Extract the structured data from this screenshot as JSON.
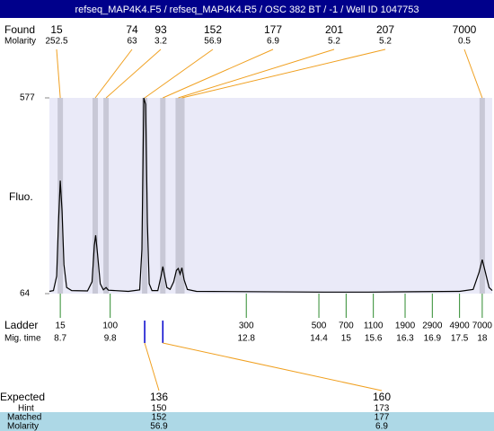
{
  "header": {
    "title": "refseq_MAP4K4.F5 / refseq_MAP4K4.R5 / OSC 382 BT / -1 / Well ID 1047753"
  },
  "found": {
    "label": "Found",
    "molarity_label": "Molarity",
    "sizes": [
      15,
      74,
      93,
      152,
      177,
      201,
      207,
      7000
    ],
    "molarities": [
      252.5,
      63,
      3.2,
      56.9,
      6.9,
      5.2,
      5.2,
      0.5
    ],
    "mig_times": [
      8.7,
      9.47,
      9.71,
      10.56,
      10.96,
      11.3,
      11.38,
      18
    ]
  },
  "chart_data": {
    "type": "line",
    "y_label": "Fluo.",
    "color": "#000000",
    "x": [
      8.46,
      8.55,
      8.62,
      8.66,
      8.7,
      8.74,
      8.78,
      8.84,
      8.95,
      9.3,
      9.4,
      9.45,
      9.48,
      9.52,
      9.58,
      9.65,
      9.71,
      9.76,
      10.2,
      10.45,
      10.5,
      10.54,
      10.58,
      10.62,
      10.66,
      10.72,
      10.85,
      10.92,
      10.96,
      11.0,
      11.05,
      11.12,
      11.2,
      11.26,
      11.3,
      11.34,
      11.38,
      11.43,
      11.5,
      11.7,
      14.5,
      15.5,
      16.5,
      17.5,
      17.8,
      17.93,
      18.0,
      18.07,
      18.15,
      18.22
    ],
    "values": [
      70,
      72,
      110,
      250,
      360,
      280,
      140,
      80,
      72,
      71,
      95,
      190,
      217,
      170,
      90,
      74,
      80,
      73,
      70,
      74,
      180,
      577,
      560,
      250,
      90,
      72,
      72,
      110,
      135,
      110,
      80,
      75,
      95,
      125,
      130,
      115,
      132,
      100,
      75,
      70,
      68,
      68,
      69,
      70,
      75,
      120,
      153,
      120,
      80,
      72
    ],
    "xlim": [
      8.46,
      18.22
    ],
    "ylim": [
      64,
      577
    ],
    "yticks": [
      64,
      577
    ]
  },
  "ladder": {
    "label": "Ladder",
    "time_label": "Mig. time",
    "sizes": [
      15,
      100,
      300,
      500,
      700,
      1100,
      1900,
      2900,
      4900,
      7000
    ],
    "mig_times": [
      8.7,
      9.8,
      12.8,
      14.4,
      15,
      15.6,
      16.3,
      16.9,
      17.5,
      18
    ]
  },
  "expected": {
    "labels": [
      "Expected",
      "Hint",
      "Matched",
      "Molarity"
    ],
    "expected": [
      136,
      160
    ],
    "hint": [
      150,
      173
    ],
    "matched": [
      152,
      177
    ],
    "molarity": [
      56.9,
      6.9
    ]
  }
}
